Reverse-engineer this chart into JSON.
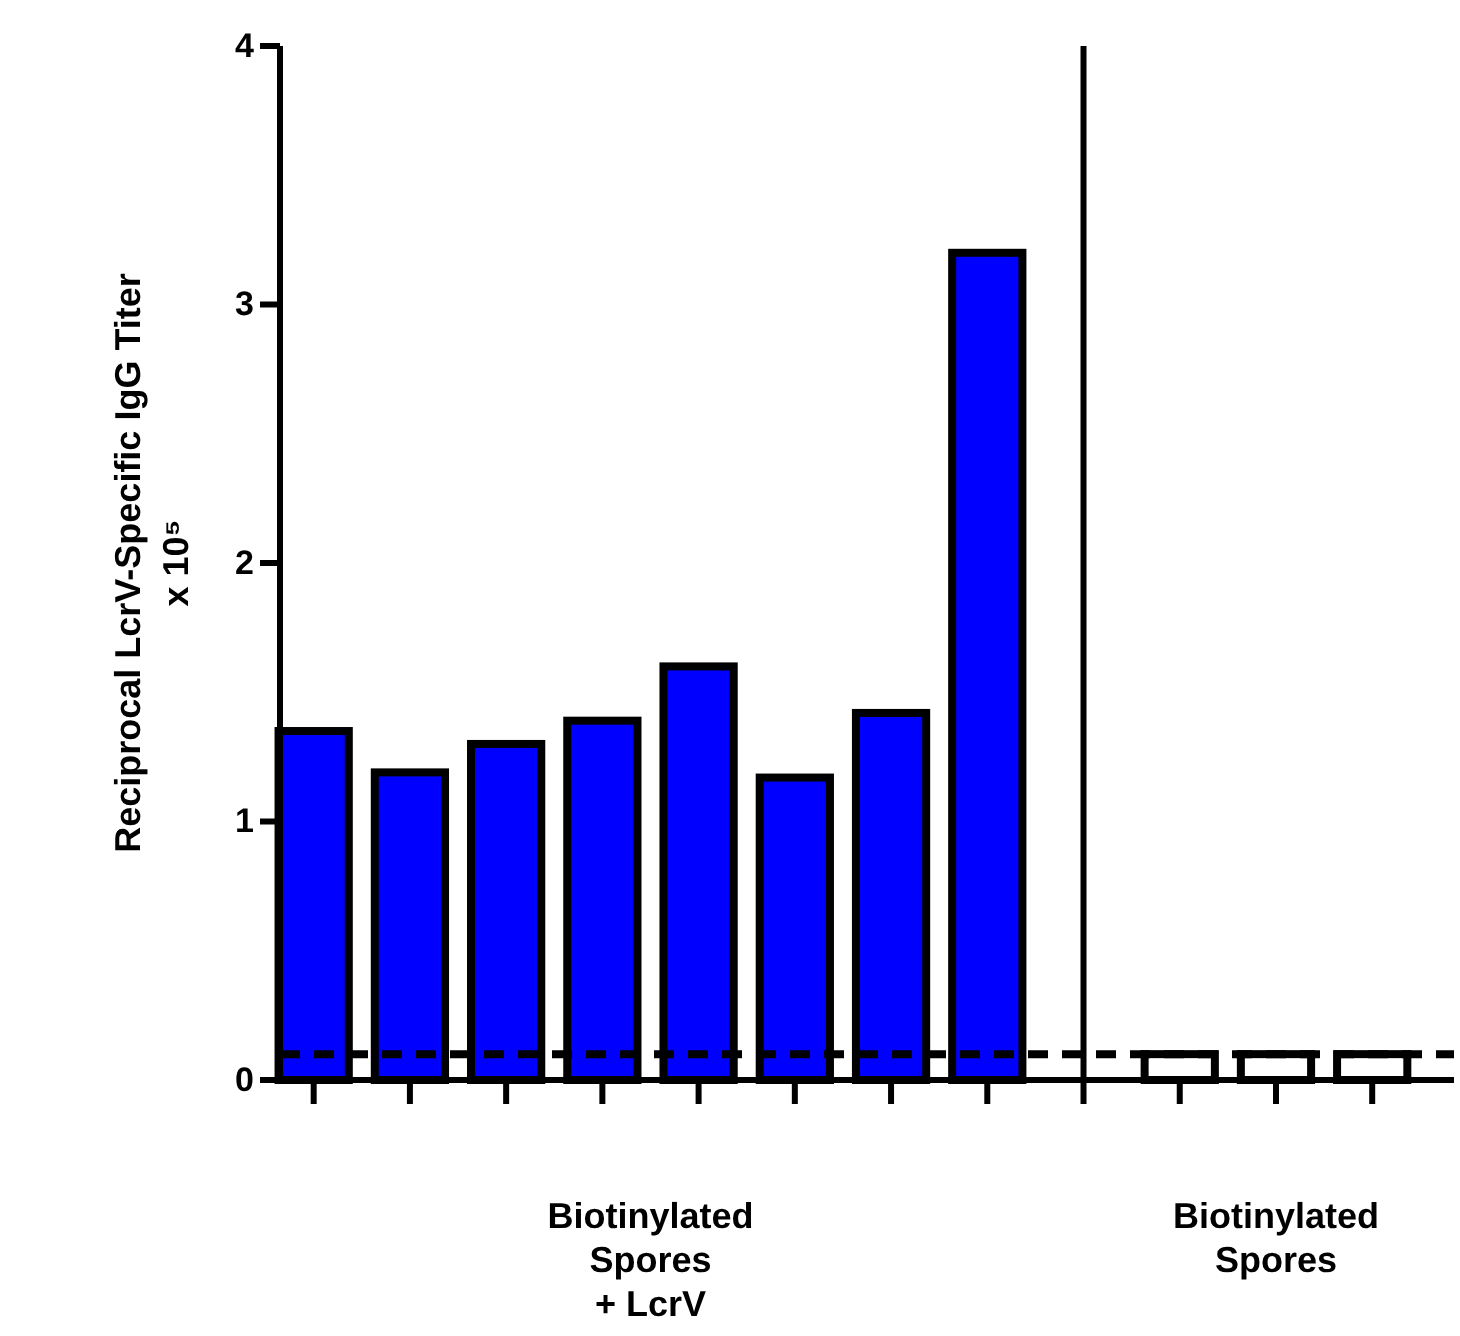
{
  "chart_data": {
    "type": "bar",
    "ylabel": "Reciprocal LcrV-Specific IgG Titer\nx 10⁵",
    "categories": [
      null,
      null,
      null,
      null,
      null,
      null,
      null,
      null,
      null,
      null,
      null,
      null
    ],
    "values": [
      1.35,
      1.19,
      1.3,
      1.39,
      1.6,
      1.17,
      1.42,
      3.2,
      null,
      0.1,
      0.1,
      0.1
    ],
    "colors": [
      "#0000ff",
      "#0000ff",
      "#0000ff",
      "#0000ff",
      "#0000ff",
      "#0000ff",
      "#0000ff",
      "#0000ff",
      null,
      "#ffffff",
      "#ffffff",
      "#ffffff"
    ],
    "ylim": [
      0,
      4
    ],
    "yticks": [
      0,
      1,
      2,
      3,
      4
    ],
    "ref_lines": [
      {
        "axis": "y",
        "value": 0.1,
        "line_style": "dashed",
        "color": "#000000"
      }
    ],
    "annotations": [
      "Biotinylated\nSpores\n+ LcrV",
      "Biotinylated\nSpores"
    ]
  }
}
